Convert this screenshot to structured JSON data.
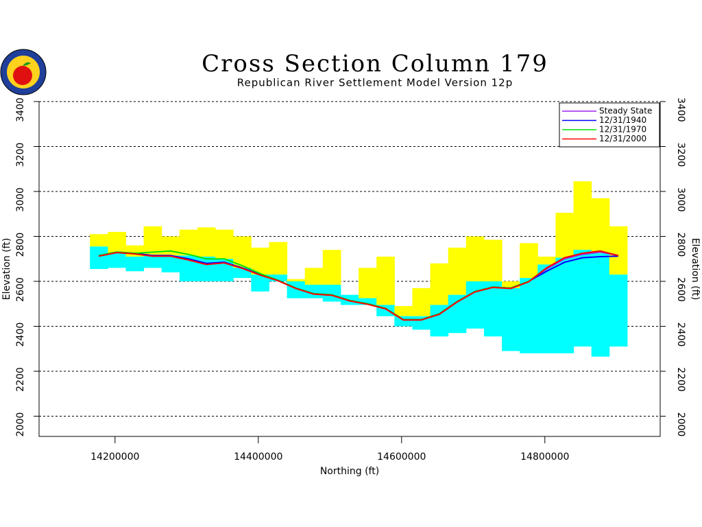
{
  "chart_data": {
    "type": "cross-section",
    "title": "Cross Section Column 179",
    "subtitle": "Republican River Settlement Model Version 12p",
    "xlabel": "Northing (ft)",
    "ylabel": "Elevation (ft)",
    "xlim": [
      14094000,
      14961000
    ],
    "ylim": [
      1910,
      3400
    ],
    "xticks": [
      14200000,
      14400000,
      14600000,
      14800000
    ],
    "yticks": [
      2000,
      2200,
      2400,
      2600,
      2800,
      3000,
      3200,
      3400
    ],
    "grid": true,
    "legend": "upper right",
    "edges": [
      14165000,
      14190000,
      14215000,
      14240000,
      14265000,
      14290000,
      14315000,
      14340000,
      14365000,
      14390000,
      14415000,
      14440000,
      14465000,
      14490000,
      14515000,
      14540000,
      14565000,
      14590000,
      14615000,
      14640000,
      14665000,
      14690000,
      14715000,
      14740000,
      14765000,
      14790000,
      14815000,
      14840000,
      14865000,
      14890000,
      14915000
    ],
    "layers": [
      {
        "color": "#ffff00",
        "top": [
          2810,
          2820,
          2760,
          2845,
          2800,
          2830,
          2840,
          2830,
          2800,
          2750,
          2775,
          2610,
          2660,
          2740,
          2540,
          2660,
          2710,
          2490,
          2570,
          2680,
          2750,
          2800,
          2785,
          2600,
          2770,
          2710,
          2905,
          3045,
          2970,
          2845
        ]
      },
      {
        "color": "#00ffff",
        "top": [
          2755,
          2725,
          2710,
          2715,
          2715,
          2715,
          2710,
          2700,
          2660,
          2630,
          2630,
          2600,
          2585,
          2585,
          2540,
          2525,
          2495,
          2445,
          2445,
          2495,
          2540,
          2600,
          2600,
          2570,
          2615,
          2675,
          2705,
          2740,
          2725,
          2630
        ]
      }
    ],
    "base": [
      2655,
      2660,
      2645,
      2660,
      2640,
      2600,
      2600,
      2600,
      2615,
      2555,
      2600,
      2525,
      2525,
      2510,
      2495,
      2495,
      2445,
      2400,
      2385,
      2355,
      2370,
      2390,
      2355,
      2290,
      2280,
      2280,
      2280,
      2310,
      2265,
      2310
    ],
    "x": [
      14177500,
      14202500,
      14227500,
      14252500,
      14277500,
      14302500,
      14327500,
      14352500,
      14377500,
      14402500,
      14427500,
      14452500,
      14477500,
      14502500,
      14527500,
      14552500,
      14577500,
      14602500,
      14627500,
      14652500,
      14677500,
      14702500,
      14727500,
      14752500,
      14777500,
      14802500,
      14827500,
      14852500,
      14877500,
      14902500
    ],
    "series": [
      {
        "name": "Steady State",
        "color": "#a020f0",
        "values": [
          2715,
          2730,
          2725,
          2715,
          2715,
          2700,
          2680,
          2685,
          2660,
          2630,
          2605,
          2570,
          2545,
          2540,
          2515,
          2500,
          2480,
          2430,
          2430,
          2455,
          2510,
          2555,
          2575,
          2570,
          2600,
          2655,
          2700,
          2720,
          2730,
          2715
        ]
      },
      {
        "name": "12/31/1940",
        "color": "#0000ff",
        "values": [
          2715,
          2730,
          2725,
          2715,
          2715,
          2700,
          2680,
          2685,
          2660,
          2630,
          2605,
          2570,
          2545,
          2540,
          2515,
          2500,
          2480,
          2430,
          2430,
          2455,
          2510,
          2555,
          2575,
          2570,
          2600,
          2645,
          2685,
          2705,
          2710,
          2712
        ]
      },
      {
        "name": "12/31/1970",
        "color": "#00e000",
        "values": [
          2715,
          2730,
          2725,
          2730,
          2735,
          2720,
          2700,
          2700,
          2670,
          2635,
          2605,
          2570,
          2545,
          2540,
          2515,
          2500,
          2480,
          2430,
          2430,
          2455,
          2510,
          2555,
          2575,
          2570,
          2600,
          2660,
          2705,
          2725,
          2735,
          2715
        ]
      },
      {
        "name": "12/31/2000",
        "color": "#ff0000",
        "values": [
          2712,
          2728,
          2722,
          2712,
          2712,
          2695,
          2675,
          2682,
          2658,
          2628,
          2603,
          2568,
          2543,
          2538,
          2513,
          2498,
          2478,
          2428,
          2428,
          2453,
          2508,
          2553,
          2573,
          2568,
          2598,
          2660,
          2705,
          2725,
          2735,
          2715
        ]
      }
    ]
  }
}
